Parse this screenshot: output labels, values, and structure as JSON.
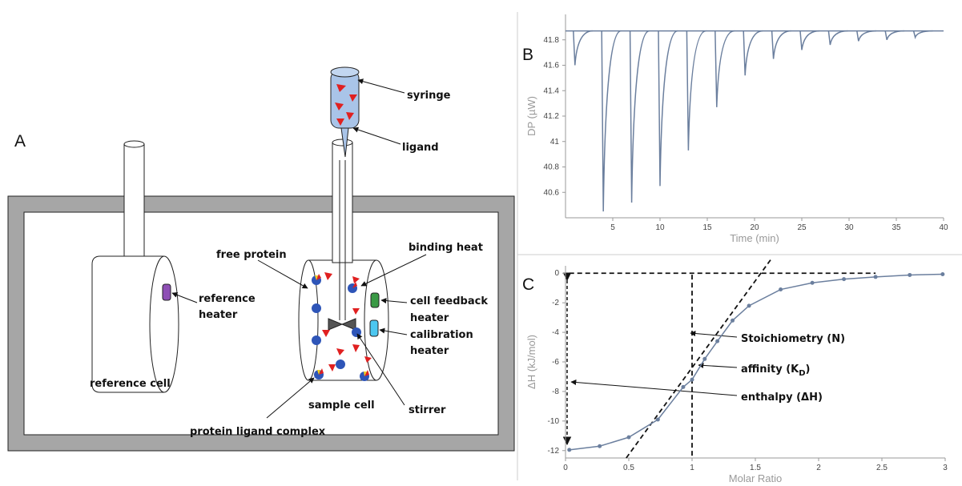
{
  "diagram": {
    "panel_label": "A",
    "labels": [
      [
        "syringe"
      ],
      [
        "ligand"
      ],
      [
        "free protein"
      ],
      [
        "binding heat"
      ],
      [
        "reference",
        "heater"
      ],
      [
        "cell feedback",
        "heater"
      ],
      [
        "calibration",
        "heater"
      ],
      [
        "reference cell"
      ],
      [
        "sample cell"
      ],
      [
        "stirrer"
      ],
      [
        "protein ligand complex"
      ]
    ]
  },
  "chart_data": [
    {
      "type": "line",
      "panel_label": "B",
      "xlabel": "Time (min)",
      "ylabel": "DP (µW)",
      "color": "#6b7f9e",
      "baseline": 41.87,
      "x": [
        1,
        4,
        7,
        10,
        13,
        16,
        19,
        22,
        25,
        28,
        31,
        34,
        37
      ],
      "values": [
        41.6,
        40.45,
        40.52,
        40.65,
        40.93,
        41.27,
        41.52,
        41.65,
        41.72,
        41.76,
        41.79,
        41.8,
        41.82
      ],
      "xlim": [
        0,
        40
      ],
      "xticks": [
        5,
        10,
        15,
        20,
        25,
        30,
        35,
        40
      ],
      "ylim": [
        40.4,
        42.0
      ],
      "yticks": [
        40.6,
        40.8,
        41,
        41.2,
        41.4,
        41.6,
        41.8
      ]
    },
    {
      "type": "scatter",
      "panel_label": "C",
      "xlabel": "Molar Ratio",
      "ylabel": "ΔH (kJ/mol)",
      "color": "#6b7f9e",
      "x": [
        0.03,
        0.27,
        0.5,
        0.73,
        0.93,
        1.0,
        1.1,
        1.2,
        1.32,
        1.45,
        1.7,
        1.95,
        2.2,
        2.45,
        2.72,
        2.98
      ],
      "values": [
        -11.95,
        -11.7,
        -11.1,
        -9.9,
        -7.7,
        -7.2,
        -5.8,
        -4.6,
        -3.2,
        -2.2,
        -1.1,
        -0.65,
        -0.4,
        -0.25,
        -0.12,
        -0.07
      ],
      "xlim": [
        0,
        3
      ],
      "xticks": [
        0,
        0.5,
        1,
        1.5,
        2,
        2.5,
        3
      ],
      "ylim": [
        -12.5,
        0.5
      ],
      "yticks": [
        0,
        -2,
        -4,
        -6,
        -8,
        -10,
        -12
      ],
      "reference_lines": [
        {
          "x": [
            0.03,
            2.45
          ],
          "y": [
            0,
            0
          ]
        },
        {
          "x": [
            1,
            1
          ],
          "y": [
            -0.1,
            -12.5
          ]
        },
        {
          "x": [
            0.48,
            1.62
          ],
          "y": [
            -12.5,
            0.9
          ]
        }
      ],
      "annotations": [
        [
          "Stoichiometry (N)"
        ],
        [
          "affinity (K",
          "D",
          ")"
        ],
        [
          "enthalpy (ΔH)"
        ]
      ]
    }
  ]
}
